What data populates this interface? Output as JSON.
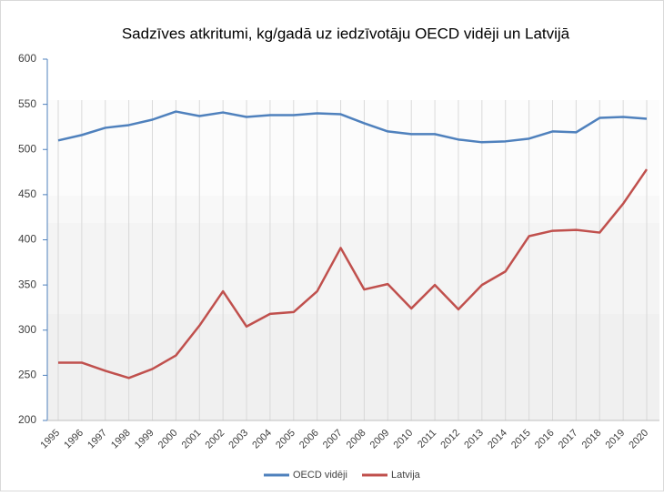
{
  "chart_data": {
    "type": "line",
    "title": "Sadzīves atkritumi, kg/gadā uz iedzīvotāju OECD vidēji un Latvijā",
    "categories": [
      "1995",
      "1996",
      "1997",
      "1998",
      "1999",
      "2000",
      "2001",
      "2002",
      "2003",
      "2004",
      "2005",
      "2006",
      "2007",
      "2008",
      "2009",
      "2010",
      "2011",
      "2012",
      "2013",
      "2014",
      "2015",
      "2016",
      "2017",
      "2018",
      "2019",
      "2020"
    ],
    "series": [
      {
        "name": "OECD vidēji",
        "color": "#4f81bd",
        "values": [
          510,
          516,
          524,
          527,
          533,
          542,
          537,
          541,
          536,
          538,
          538,
          540,
          539,
          529,
          520,
          517,
          517,
          511,
          508,
          509,
          512,
          520,
          519,
          535,
          536,
          534
        ]
      },
      {
        "name": "Latvija",
        "color": "#c0504d",
        "values": [
          264,
          264,
          255,
          247,
          257,
          272,
          305,
          343,
          304,
          318,
          320,
          343,
          391,
          345,
          351,
          324,
          350,
          323,
          350,
          365,
          404,
          410,
          411,
          408,
          440,
          478
        ]
      }
    ],
    "ylim": [
      200,
      600
    ],
    "yticks": [
      200,
      250,
      300,
      350,
      400,
      450,
      500,
      550,
      600
    ],
    "grid": true,
    "legend": "bottom"
  }
}
